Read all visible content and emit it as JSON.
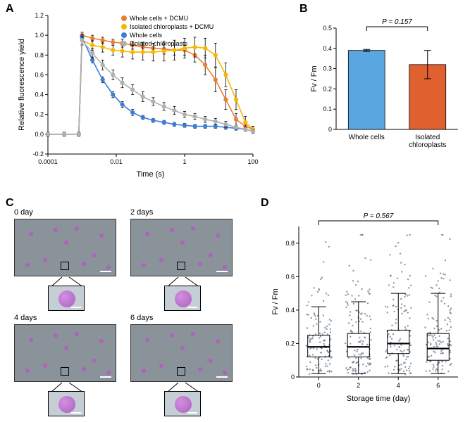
{
  "panelA": {
    "label": "A",
    "type": "line",
    "xlabel": "Time (s)",
    "ylabel": "Relative fluorescence yield",
    "xscale": "log",
    "xlim": [
      0.0001,
      100
    ],
    "ylim": [
      -0.2,
      1.2
    ],
    "xticks": [
      0.0001,
      0.01,
      1,
      100
    ],
    "xtick_labels": [
      "0.0001",
      "0.01",
      "1",
      "100"
    ],
    "yticks": [
      -0.2,
      0.0,
      0.2,
      0.4,
      0.6,
      0.8,
      1.0,
      1.2
    ],
    "ytick_labels": [
      "-0.2",
      "0.0",
      "0.2",
      "0.4",
      "0.6",
      "0.8",
      "1.0",
      "1.2"
    ],
    "label_fontsize": 11,
    "tick_fontsize": 9,
    "background_color": "#ffffff",
    "axis_color": "#000000",
    "legend": [
      {
        "label": "Whole cells + DCMU",
        "color": "#ed7d31"
      },
      {
        "label": "Isolated chloroplasts + DCMU",
        "color": "#f5b800"
      },
      {
        "label": "Whole cells",
        "color": "#3b7dd8"
      },
      {
        "label": "Isolated chloroplasts",
        "color": "#b0b0b0"
      }
    ],
    "series": [
      {
        "name": "Whole cells + DCMU",
        "color": "#ed7d31",
        "marker": "circle",
        "x": [
          0.0001,
          0.0003,
          0.0008,
          0.001,
          0.002,
          0.004,
          0.008,
          0.015,
          0.03,
          0.06,
          0.12,
          0.25,
          0.5,
          1,
          2,
          4,
          8,
          16,
          32,
          60,
          100
        ],
        "y": [
          0,
          0,
          0,
          1.0,
          0.97,
          0.95,
          0.93,
          0.92,
          0.9,
          0.88,
          0.87,
          0.86,
          0.85,
          0.85,
          0.8,
          0.7,
          0.55,
          0.35,
          0.15,
          0.08,
          0.05
        ],
        "err": [
          0.02,
          0.02,
          0.02,
          0.03,
          0.03,
          0.03,
          0.03,
          0.04,
          0.04,
          0.05,
          0.05,
          0.05,
          0.05,
          0.05,
          0.07,
          0.1,
          0.12,
          0.1,
          0.06,
          0.04,
          0.03
        ]
      },
      {
        "name": "Isolated chloroplasts + DCMU",
        "color": "#f5b800",
        "marker": "circle",
        "x": [
          0.0001,
          0.0003,
          0.0008,
          0.001,
          0.002,
          0.004,
          0.008,
          0.015,
          0.03,
          0.06,
          0.12,
          0.25,
          0.5,
          1,
          2,
          4,
          8,
          16,
          32,
          60,
          100
        ],
        "y": [
          0,
          0,
          0,
          0.95,
          0.9,
          0.88,
          0.85,
          0.84,
          0.83,
          0.83,
          0.83,
          0.84,
          0.85,
          0.87,
          0.88,
          0.87,
          0.8,
          0.6,
          0.35,
          0.12,
          0.05
        ],
        "err": [
          0.02,
          0.02,
          0.02,
          0.05,
          0.05,
          0.05,
          0.05,
          0.06,
          0.07,
          0.08,
          0.09,
          0.1,
          0.1,
          0.1,
          0.1,
          0.1,
          0.12,
          0.12,
          0.1,
          0.06,
          0.03
        ]
      },
      {
        "name": "Whole cells",
        "color": "#3b7dd8",
        "marker": "circle",
        "x": [
          0.0001,
          0.0003,
          0.0008,
          0.001,
          0.002,
          0.004,
          0.008,
          0.015,
          0.03,
          0.06,
          0.12,
          0.25,
          0.5,
          1,
          2,
          4,
          8,
          16,
          32,
          60,
          100
        ],
        "y": [
          0,
          0,
          0,
          0.98,
          0.75,
          0.55,
          0.4,
          0.3,
          0.22,
          0.17,
          0.14,
          0.12,
          0.1,
          0.09,
          0.08,
          0.08,
          0.08,
          0.07,
          0.06,
          0.05,
          0.03
        ],
        "err": [
          0.02,
          0.02,
          0.02,
          0.03,
          0.03,
          0.03,
          0.03,
          0.03,
          0.03,
          0.02,
          0.02,
          0.02,
          0.02,
          0.02,
          0.02,
          0.02,
          0.02,
          0.02,
          0.02,
          0.02,
          0.02
        ]
      },
      {
        "name": "Isolated chloroplasts",
        "color": "#b0b0b0",
        "marker": "circle",
        "x": [
          0.0001,
          0.0003,
          0.0008,
          0.001,
          0.002,
          0.004,
          0.008,
          0.015,
          0.03,
          0.06,
          0.12,
          0.25,
          0.5,
          1,
          2,
          4,
          8,
          16,
          32,
          60,
          100
        ],
        "y": [
          0,
          0,
          0,
          0.95,
          0.82,
          0.7,
          0.6,
          0.52,
          0.45,
          0.38,
          0.33,
          0.28,
          0.24,
          0.2,
          0.18,
          0.15,
          0.13,
          0.1,
          0.07,
          0.05,
          0.03
        ],
        "err": [
          0.02,
          0.02,
          0.02,
          0.04,
          0.05,
          0.05,
          0.05,
          0.05,
          0.05,
          0.05,
          0.04,
          0.04,
          0.04,
          0.03,
          0.03,
          0.03,
          0.03,
          0.03,
          0.02,
          0.02,
          0.02
        ]
      }
    ]
  },
  "panelB": {
    "label": "B",
    "type": "bar",
    "ylabel": "Fv / Fm",
    "p_text": "P = 0.157",
    "ylim": [
      0,
      0.5
    ],
    "yticks": [
      0,
      0.1,
      0.2,
      0.3,
      0.4,
      0.5
    ],
    "ytick_labels": [
      "0",
      "0.1",
      "0.2",
      "0.3",
      "0.4",
      "0.5"
    ],
    "categories": [
      "Whole cells",
      "Isolated\nchloroplasts"
    ],
    "values": [
      0.39,
      0.32
    ],
    "errors": [
      0.005,
      0.07
    ],
    "bar_colors": [
      "#5aa6e0",
      "#e06030"
    ],
    "bar_width": 0.6,
    "label_fontsize": 11,
    "tick_fontsize": 9,
    "axis_color": "#000000"
  },
  "panelC": {
    "label": "C",
    "type": "microscopy",
    "timepoints": [
      "0 day",
      "2 days",
      "4 days",
      "6 days"
    ],
    "background_color": "#8a929a",
    "zoom_bg": "#c5cdd5",
    "cell_color": "#b060c0",
    "cell_color2": "#d090e0",
    "scalebar_color": "#ffffff",
    "label_fontsize": 11
  },
  "panelD": {
    "label": "D",
    "type": "boxplot",
    "xlabel": "Storage time (day)",
    "ylabel": "Fv / Fm",
    "p_text": "P = 0.567",
    "xlim": [
      -0.5,
      6.5
    ],
    "ylim": [
      0,
      0.9
    ],
    "yticks": [
      0,
      0.2,
      0.4,
      0.6,
      0.8
    ],
    "ytick_labels": [
      "0",
      "0.2",
      "0.4",
      "0.6",
      "0.8"
    ],
    "categories": [
      0,
      2,
      4,
      6
    ],
    "xtick_labels": [
      "0",
      "2",
      "4",
      "6"
    ],
    "boxes": [
      {
        "q1": 0.12,
        "median": 0.18,
        "q3": 0.25,
        "whisker_lo": 0.02,
        "whisker_hi": 0.42
      },
      {
        "q1": 0.12,
        "median": 0.18,
        "q3": 0.26,
        "whisker_lo": 0.02,
        "whisker_hi": 0.45
      },
      {
        "q1": 0.14,
        "median": 0.2,
        "q3": 0.28,
        "whisker_lo": 0.02,
        "whisker_hi": 0.5
      },
      {
        "q1": 0.1,
        "median": 0.17,
        "q3": 0.26,
        "whisker_lo": 0.02,
        "whisker_hi": 0.5
      }
    ],
    "box_color": "#000000",
    "box_fill": "#ffffff",
    "point_color": "#506478",
    "point_radius": 1.2,
    "jitter_width": 0.35,
    "n_points_per_box": 120,
    "label_fontsize": 11,
    "tick_fontsize": 9
  }
}
